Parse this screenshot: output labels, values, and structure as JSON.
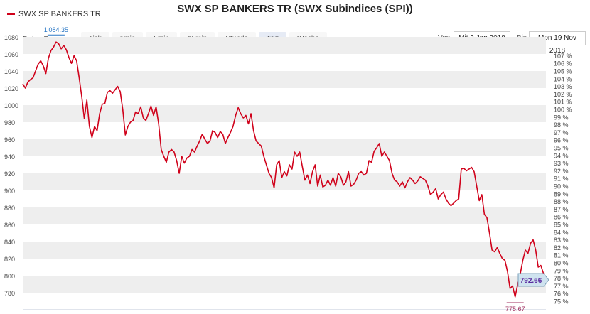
{
  "header": {
    "legend_label": "SWX SP BANKERS TR",
    "title": "SWX SP BANKERS TR (SWX Subindices (SPI))"
  },
  "toolbar": {
    "frequency_label": "Daten Frequenz",
    "buttons": [
      "Tick",
      "1min",
      "5min",
      "15min",
      "Stunde",
      "Tag",
      "Woche"
    ],
    "active": "Tag"
  },
  "range": {
    "from_label": "Von",
    "from_value": "Mit 3 Jan 2018",
    "to_label": "Bis",
    "to_value": "Mon 19 Nov 2018"
  },
  "colors": {
    "line": "#d0021b",
    "max_label": "#2b78c5",
    "min_label": "#a03060",
    "last_badge": "#cfe3ef",
    "last_text": "#5a2ca0",
    "band": "#eeeeee"
  },
  "chart_data": {
    "type": "line",
    "series": [
      {
        "name": "SWX SP BANKERS TR",
        "start": "2018-01-03",
        "end": "2018-11-19",
        "values": [
          1025,
          1020,
          1027,
          1030,
          1032,
          1040,
          1048,
          1052,
          1046,
          1037,
          1055,
          1064,
          1068,
          1074,
          1072,
          1066,
          1070,
          1065,
          1056,
          1049,
          1058,
          1052,
          1032,
          1010,
          984,
          1006,
          975,
          962,
          975,
          970,
          990,
          1001,
          1002,
          1015,
          1017,
          1014,
          1018,
          1022,
          1016,
          995,
          965,
          975,
          980,
          982,
          992,
          990,
          998,
          985,
          982,
          990,
          999,
          988,
          998,
          978,
          948,
          940,
          933,
          945,
          948,
          945,
          935,
          920,
          940,
          932,
          938,
          940,
          948,
          945,
          952,
          958,
          966,
          960,
          955,
          958,
          970,
          968,
          962,
          969,
          966,
          955,
          962,
          968,
          975,
          988,
          997,
          990,
          985,
          988,
          978,
          990,
          970,
          958,
          955,
          952,
          940,
          930,
          920,
          915,
          903,
          930,
          935,
          915,
          922,
          917,
          930,
          925,
          945,
          940,
          945,
          928,
          912,
          918,
          908,
          922,
          930,
          905,
          918,
          904,
          906,
          912,
          906,
          915,
          905,
          920,
          916,
          906,
          910,
          922,
          905,
          907,
          912,
          920,
          922,
          918,
          920,
          935,
          933,
          946,
          950,
          955,
          940,
          945,
          940,
          935,
          920,
          912,
          910,
          905,
          910,
          903,
          910,
          915,
          912,
          908,
          911,
          916,
          914,
          912,
          905,
          895,
          898,
          902,
          890,
          895,
          898,
          890,
          885,
          882,
          885,
          888,
          890,
          925,
          926,
          923,
          925,
          927,
          922,
          905,
          888,
          895,
          872,
          868,
          850,
          830,
          828,
          833,
          826,
          820,
          818,
          805,
          785,
          788,
          775,
          790,
          802,
          818,
          830,
          826,
          838,
          842,
          830,
          810,
          812,
          803,
          795
        ]
      }
    ],
    "ylim": [
      775,
      1080
    ],
    "y_ticks": [
      780,
      800,
      820,
      840,
      860,
      880,
      900,
      920,
      940,
      960,
      980,
      1000,
      1020,
      1040,
      1060,
      1080
    ],
    "y_ticks_labels": [
      "780",
      "800",
      "820",
      "840",
      "860",
      "880",
      "900",
      "920",
      "940",
      "960",
      "980",
      "1000",
      "1020",
      "1040",
      "1060",
      "1080"
    ],
    "right_axis": {
      "labels": [
        "75 %",
        "76 %",
        "77 %",
        "78 %",
        "79 %",
        "80 %",
        "81 %",
        "82 %",
        "83 %",
        "84 %",
        "85 %",
        "86 %",
        "87 %",
        "88 %",
        "89 %",
        "90 %",
        "91 %",
        "92 %",
        "93 %",
        "94 %",
        "95 %",
        "96 %",
        "97 %",
        "98 %",
        "99 %",
        "100 %",
        "101 %",
        "102 %",
        "103 %",
        "104 %",
        "105 %",
        "106 %",
        "107 %"
      ],
      "start_value": 75,
      "step": 1
    },
    "annotations": {
      "max_label": "1'084.35",
      "min_label": "775.67",
      "last_label": "792.66"
    },
    "grid": true
  }
}
